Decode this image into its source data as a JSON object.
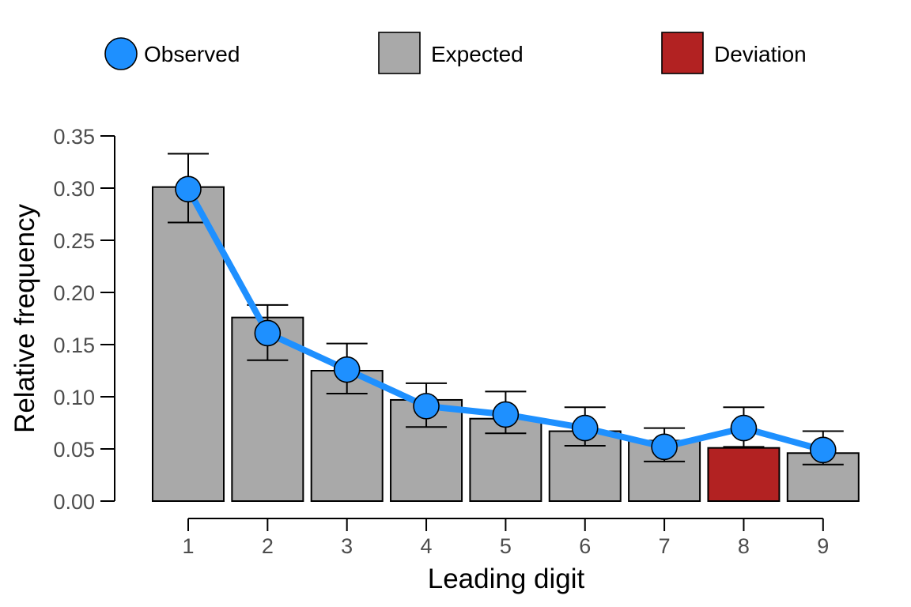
{
  "chart_data": {
    "type": "bar",
    "xlabel": "Leading digit",
    "ylabel": "Relative frequency",
    "categories": [
      "1",
      "2",
      "3",
      "4",
      "5",
      "6",
      "7",
      "8",
      "9"
    ],
    "ylim": [
      0,
      0.35
    ],
    "yticks": [
      "0.00",
      "0.05",
      "0.10",
      "0.15",
      "0.20",
      "0.25",
      "0.30",
      "0.35"
    ],
    "ytick_values": [
      0,
      0.05,
      0.1,
      0.15,
      0.2,
      0.25,
      0.3,
      0.35
    ],
    "grid": false,
    "legend_position": "top",
    "highlight_index": 7,
    "series": [
      {
        "name": "Expected",
        "kind": "bar",
        "values": [
          0.301,
          0.176,
          0.125,
          0.097,
          0.079,
          0.067,
          0.058,
          0.051,
          0.046
        ]
      },
      {
        "name": "Observed",
        "kind": "line",
        "values": [
          0.299,
          0.161,
          0.126,
          0.091,
          0.083,
          0.07,
          0.052,
          0.07,
          0.049
        ],
        "error_low": [
          0.267,
          0.135,
          0.103,
          0.071,
          0.065,
          0.053,
          0.038,
          0.052,
          0.035
        ],
        "error_high": [
          0.333,
          0.188,
          0.151,
          0.113,
          0.105,
          0.09,
          0.07,
          0.09,
          0.067
        ]
      }
    ],
    "legend": [
      {
        "label": "Observed",
        "swatch": "circle",
        "color": "#1E90FF"
      },
      {
        "label": "Expected",
        "swatch": "square",
        "color": "#A9A9A9"
      },
      {
        "label": "Deviation",
        "swatch": "square",
        "color": "#B22222"
      }
    ],
    "colors": {
      "observed": "#1E90FF",
      "expected": "#A9A9A9",
      "deviation": "#B22222",
      "axis": "#000000",
      "tick_text": "#4d4d4d"
    }
  }
}
